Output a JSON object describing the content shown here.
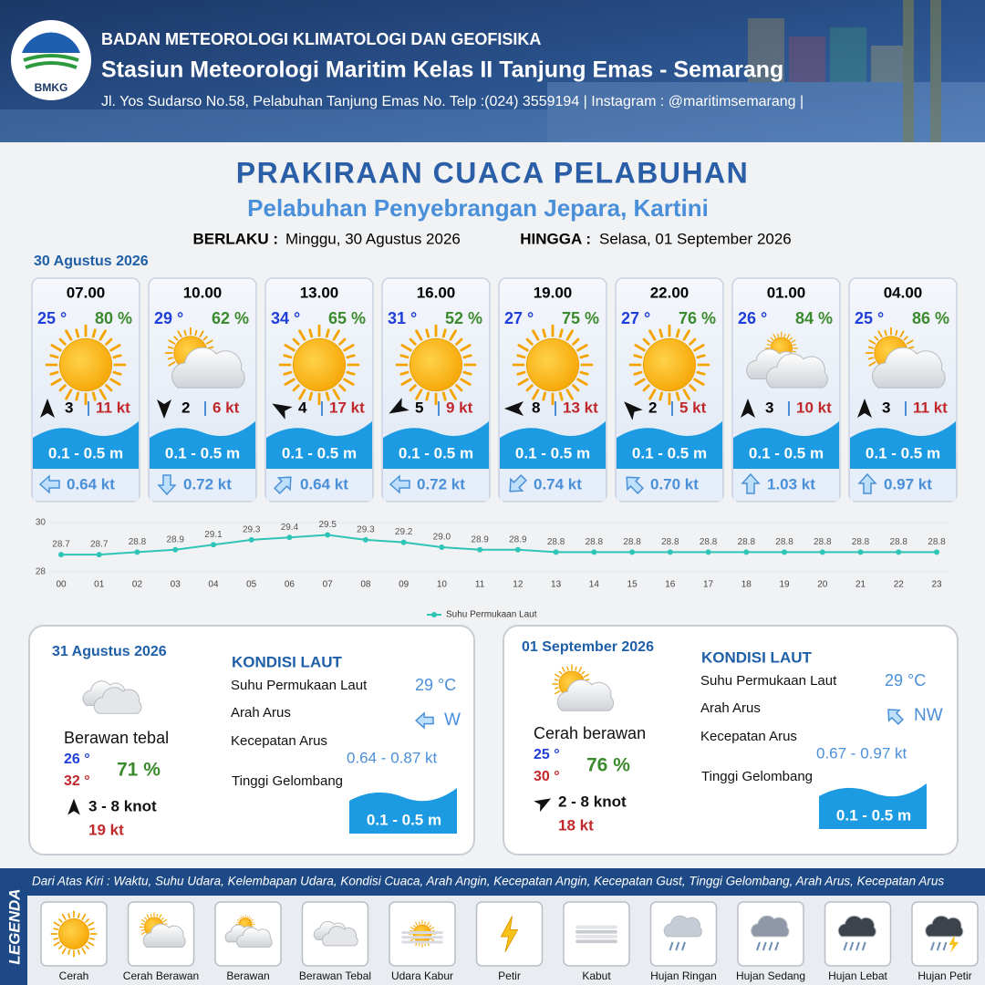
{
  "header": {
    "logo": "BMKG",
    "org": "BADAN METEOROLOGI KLIMATOLOGI DAN GEOFISIKA",
    "station": "Stasiun Meteorologi Maritim Kelas II Tanjung Emas - Semarang",
    "address": "Jl. Yos Sudarso No.58, Pelabuhan Tanjung Emas No. Telp :(024) 3559194 | Instagram : @maritimsemarang |"
  },
  "title": "PRAKIRAAN CUACA PELABUHAN",
  "subtitle": "Pelabuhan Penyebrangan Jepara, Kartini",
  "validity": {
    "from_label": "BERLAKU :",
    "from": "Minggu, 30 Agustus 2026",
    "to_label": "HINGGA :",
    "to": "Selasa, 01 September 2026"
  },
  "day1": {
    "date": "30 Agustus 2026",
    "slots": [
      {
        "time": "07.00",
        "temp": "25 °",
        "humidity": "80 %",
        "wind": "3",
        "gust": "11 kt",
        "wave": "0.1 - 0.5 m",
        "current": "0.64 kt"
      },
      {
        "time": "10.00",
        "temp": "29 °",
        "humidity": "62 %",
        "wind": "2",
        "gust": "6 kt",
        "wave": "0.1 - 0.5 m",
        "current": "0.72 kt"
      },
      {
        "time": "13.00",
        "temp": "34 °",
        "humidity": "65 %",
        "wind": "4",
        "gust": "17 kt",
        "wave": "0.1 - 0.5 m",
        "current": "0.64 kt"
      },
      {
        "time": "16.00",
        "temp": "31 °",
        "humidity": "52 %",
        "wind": "5",
        "gust": "9 kt",
        "wave": "0.1 - 0.5 m",
        "current": "0.72 kt"
      },
      {
        "time": "19.00",
        "temp": "27 °",
        "humidity": "75 %",
        "wind": "8",
        "gust": "13 kt",
        "wave": "0.1 - 0.5 m",
        "current": "0.74 kt"
      },
      {
        "time": "22.00",
        "temp": "27 °",
        "humidity": "76 %",
        "wind": "2",
        "gust": "5 kt",
        "wave": "0.1 - 0.5 m",
        "current": "0.70 kt"
      },
      {
        "time": "01.00",
        "temp": "26 °",
        "humidity": "84 %",
        "wind": "3",
        "gust": "10 kt",
        "wave": "0.1 - 0.5 m",
        "current": "1.03 kt"
      },
      {
        "time": "04.00",
        "temp": "25 °",
        "humidity": "86 %",
        "wind": "3",
        "gust": "11 kt",
        "wave": "0.1 - 0.5 m",
        "current": "0.97 kt"
      }
    ]
  },
  "chart_data": {
    "type": "line",
    "categories": [
      "00",
      "01",
      "02",
      "03",
      "04",
      "05",
      "06",
      "07",
      "08",
      "09",
      "10",
      "11",
      "12",
      "13",
      "14",
      "15",
      "16",
      "17",
      "18",
      "19",
      "20",
      "21",
      "22",
      "23"
    ],
    "series": [
      {
        "name": "Suhu Permukaan Laut",
        "color": "#2ec4b6",
        "values": [
          28.7,
          28.7,
          28.8,
          28.9,
          29.1,
          29.3,
          29.4,
          29.5,
          29.3,
          29.2,
          29.0,
          28.9,
          28.9,
          28.8,
          28.8,
          28.8,
          28.8,
          28.8,
          28.8,
          28.8,
          28.8,
          28.8,
          28.8,
          28.8
        ],
        "value_labels": [
          "28.7",
          "28.7",
          "28.8",
          "28.9",
          "29.1",
          "29.3",
          "29.4",
          "29.5",
          "29.3",
          "29.2",
          "29.0",
          "28.9",
          "28.9",
          "28.8",
          "28.8",
          "28.8",
          "28.8",
          "28.8",
          "28.8",
          "28.8",
          "28.8",
          "28.8",
          "28.8",
          "28.8"
        ]
      }
    ],
    "ylim": [
      28,
      30
    ],
    "yticks": [
      28,
      30
    ],
    "grid": true,
    "legend": "bottom"
  },
  "days": [
    {
      "date": "31 Agustus 2026",
      "condition": "Berawan tebal",
      "temp_min": "26 °",
      "temp_max": "32 °",
      "humidity": "71 %",
      "wind": "3 - 8 knot",
      "gust": "19 kt",
      "sea_title": "KONDISI LAUT",
      "sst_label": "Suhu Permukaan Laut",
      "sst": "29 °C",
      "current_dir_label": "Arah Arus",
      "current_dir": "W",
      "current_speed_label": "Kecepatan Arus",
      "current_speed": "0.64 - 0.87 kt",
      "wave_label": "Tinggi Gelombang",
      "wave": "0.1 - 0.5 m"
    },
    {
      "date": "01 September 2026",
      "condition": "Cerah berawan",
      "temp_min": "25 °",
      "temp_max": "30 °",
      "humidity": "76 %",
      "wind": "2 - 8 knot",
      "gust": "18 kt",
      "sea_title": "KONDISI LAUT",
      "sst_label": "Suhu Permukaan Laut",
      "sst": "29 °C",
      "current_dir_label": "Arah Arus",
      "current_dir": "NW",
      "current_speed_label": "Kecepatan Arus",
      "current_speed": "0.67 - 0.97 kt",
      "wave_label": "Tinggi Gelombang",
      "wave": "0.1 - 0.5 m"
    }
  ],
  "legend": {
    "title": "LEGENDA",
    "description": "Dari Atas Kiri : Waktu, Suhu Udara, Kelembapan Udara, Kondisi Cuaca, Arah Angin, Kecepatan Angin, Kecepatan Gust, Tinggi Gelombang, Arah Arus, Kecepatan Arus",
    "items": [
      "Cerah",
      "Cerah Berawan",
      "Berawan",
      "Berawan Tebal",
      "Udara Kabur",
      "Petir",
      "Kabut",
      "Hujan Ringan",
      "Hujan Sedang",
      "Hujan Lebat",
      "Hujan Petir"
    ]
  }
}
